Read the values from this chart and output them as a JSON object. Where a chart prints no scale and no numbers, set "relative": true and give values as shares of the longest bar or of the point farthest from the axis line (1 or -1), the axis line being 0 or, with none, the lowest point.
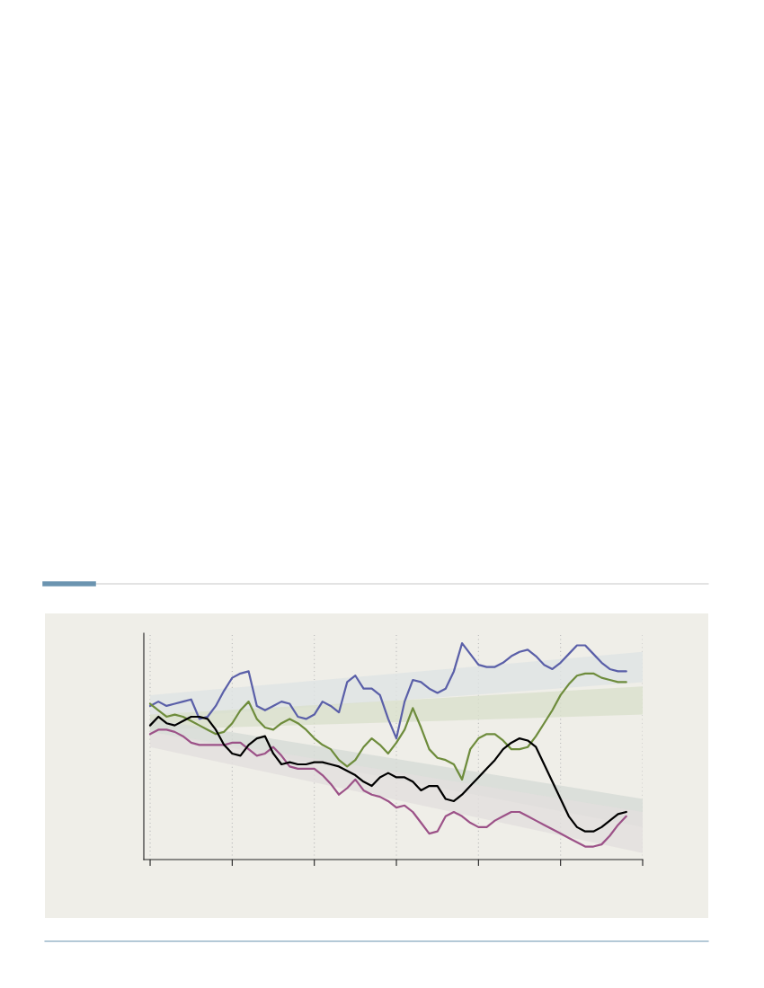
{
  "chart_data": {
    "type": "line",
    "relative": true,
    "grid": "x",
    "legend": false,
    "categories": [
      null,
      null,
      null,
      null,
      null,
      null,
      null,
      null,
      null,
      null,
      null,
      null,
      null,
      null,
      null,
      null,
      null,
      null,
      null,
      null,
      null,
      null,
      null,
      null,
      null,
      null,
      null,
      null,
      null,
      null,
      null,
      null,
      null,
      null,
      null,
      null,
      null,
      null,
      null,
      null,
      null,
      null,
      null,
      null,
      null,
      null,
      null,
      null,
      null,
      null,
      null,
      null,
      null,
      null,
      null,
      null,
      null,
      null,
      null,
      null,
      null
    ],
    "series": [
      {
        "type": "area",
        "color": "#dfe4e4",
        "values": [
          null,
          null,
          null,
          null,
          null,
          null,
          null,
          null,
          null,
          null,
          null,
          null,
          null,
          null,
          null,
          null,
          null,
          null,
          null,
          null,
          null,
          null,
          null,
          null,
          null,
          null,
          null,
          null,
          null,
          null,
          null,
          null,
          null,
          null,
          null,
          null,
          null,
          null,
          null,
          null,
          null,
          null,
          null,
          null,
          null,
          null,
          null,
          null,
          null,
          null,
          null,
          null,
          null,
          null,
          null,
          null,
          null,
          null,
          null,
          null,
          null
        ],
        "lower": [
          0.65,
          null,
          null,
          null,
          null,
          null,
          null,
          null,
          null,
          null,
          null,
          null,
          null,
          null,
          null,
          null,
          null,
          null,
          null,
          null,
          null,
          null,
          null,
          null,
          null,
          null,
          null,
          null,
          null,
          null,
          null,
          null,
          null,
          null,
          null,
          null,
          null,
          null,
          null,
          null,
          null,
          null,
          null,
          null,
          null,
          null,
          null,
          null,
          null,
          null,
          null,
          null,
          null,
          null,
          null,
          null,
          null,
          null,
          null,
          null,
          0.82
        ],
        "upper": [
          0.76,
          null,
          null,
          null,
          null,
          null,
          null,
          null,
          null,
          null,
          null,
          null,
          null,
          null,
          null,
          null,
          null,
          null,
          null,
          null,
          null,
          null,
          null,
          null,
          null,
          null,
          null,
          null,
          null,
          null,
          null,
          null,
          null,
          null,
          null,
          null,
          null,
          null,
          null,
          null,
          null,
          null,
          null,
          null,
          null,
          null,
          null,
          null,
          null,
          null,
          null,
          null,
          null,
          null,
          null,
          null,
          null,
          null,
          null,
          null,
          0.96
        ]
      },
      {
        "type": "area",
        "color": "#d9e0cc",
        "values": [
          null,
          null,
          null,
          null,
          null,
          null,
          null,
          null,
          null,
          null,
          null,
          null,
          null,
          null,
          null,
          null,
          null,
          null,
          null,
          null,
          null,
          null,
          null,
          null,
          null,
          null,
          null,
          null,
          null,
          null,
          null,
          null,
          null,
          null,
          null,
          null,
          null,
          null,
          null,
          null,
          null,
          null,
          null,
          null,
          null,
          null,
          null,
          null,
          null,
          null,
          null,
          null,
          null,
          null,
          null,
          null,
          null,
          null,
          null,
          null,
          null
        ],
        "lower": [
          0.6,
          null,
          null,
          null,
          null,
          null,
          null,
          null,
          null,
          null,
          null,
          null,
          null,
          null,
          null,
          null,
          null,
          null,
          null,
          null,
          null,
          null,
          null,
          null,
          null,
          null,
          null,
          null,
          null,
          null,
          null,
          null,
          null,
          null,
          null,
          null,
          null,
          null,
          null,
          null,
          null,
          null,
          null,
          null,
          null,
          null,
          null,
          null,
          null,
          null,
          null,
          null,
          null,
          null,
          null,
          null,
          null,
          null,
          null,
          null,
          0.67
        ],
        "upper": [
          0.67,
          null,
          null,
          null,
          null,
          null,
          null,
          null,
          null,
          null,
          null,
          null,
          null,
          null,
          null,
          null,
          null,
          null,
          null,
          null,
          null,
          null,
          null,
          null,
          null,
          null,
          null,
          null,
          null,
          null,
          null,
          null,
          null,
          null,
          null,
          null,
          null,
          null,
          null,
          null,
          null,
          null,
          null,
          null,
          null,
          null,
          null,
          null,
          null,
          null,
          null,
          null,
          null,
          null,
          null,
          null,
          null,
          null,
          null,
          null,
          0.8
        ]
      },
      {
        "type": "area",
        "color": "#d6dbd6",
        "values": [
          null,
          null,
          null,
          null,
          null,
          null,
          null,
          null,
          null,
          null,
          null,
          null,
          null,
          null,
          null,
          null,
          null,
          null,
          null,
          null,
          null,
          null,
          null,
          null,
          null,
          null,
          null,
          null,
          null,
          null,
          null,
          null,
          null,
          null,
          null,
          null,
          null,
          null,
          null,
          null,
          null,
          null,
          null,
          null,
          null,
          null,
          null,
          null,
          null,
          null,
          null,
          null,
          null,
          null,
          null,
          null,
          null,
          null,
          null,
          null,
          null
        ],
        "lower": [
          0.59,
          null,
          null,
          null,
          null,
          null,
          null,
          null,
          null,
          null,
          null,
          null,
          null,
          null,
          null,
          null,
          null,
          null,
          null,
          null,
          null,
          null,
          null,
          null,
          null,
          null,
          null,
          null,
          null,
          null,
          null,
          null,
          null,
          null,
          null,
          null,
          null,
          null,
          null,
          null,
          null,
          null,
          null,
          null,
          null,
          null,
          null,
          null,
          null,
          null,
          null,
          null,
          null,
          null,
          null,
          null,
          null,
          null,
          null,
          null,
          0.15
        ],
        "upper": [
          0.65,
          null,
          null,
          null,
          null,
          null,
          null,
          null,
          null,
          null,
          null,
          null,
          null,
          null,
          null,
          null,
          null,
          null,
          null,
          null,
          null,
          null,
          null,
          null,
          null,
          null,
          null,
          null,
          null,
          null,
          null,
          null,
          null,
          null,
          null,
          null,
          null,
          null,
          null,
          null,
          null,
          null,
          null,
          null,
          null,
          null,
          null,
          null,
          null,
          null,
          null,
          null,
          null,
          null,
          null,
          null,
          null,
          null,
          null,
          null,
          0.28
        ]
      },
      {
        "type": "area",
        "color": "#e2dfdd",
        "values": [
          null,
          null,
          null,
          null,
          null,
          null,
          null,
          null,
          null,
          null,
          null,
          null,
          null,
          null,
          null,
          null,
          null,
          null,
          null,
          null,
          null,
          null,
          null,
          null,
          null,
          null,
          null,
          null,
          null,
          null,
          null,
          null,
          null,
          null,
          null,
          null,
          null,
          null,
          null,
          null,
          null,
          null,
          null,
          null,
          null,
          null,
          null,
          null,
          null,
          null,
          null,
          null,
          null,
          null,
          null,
          null,
          null,
          null,
          null,
          null,
          null
        ],
        "lower": [
          0.52,
          null,
          null,
          null,
          null,
          null,
          null,
          null,
          null,
          null,
          null,
          null,
          null,
          null,
          null,
          null,
          null,
          null,
          null,
          null,
          null,
          null,
          null,
          null,
          null,
          null,
          null,
          null,
          null,
          null,
          null,
          null,
          null,
          null,
          null,
          null,
          null,
          null,
          null,
          null,
          null,
          null,
          null,
          null,
          null,
          null,
          null,
          null,
          null,
          null,
          null,
          null,
          null,
          null,
          null,
          null,
          null,
          null,
          null,
          null,
          0.03
        ],
        "upper": [
          0.59,
          null,
          null,
          null,
          null,
          null,
          null,
          null,
          null,
          null,
          null,
          null,
          null,
          null,
          null,
          null,
          null,
          null,
          null,
          null,
          null,
          null,
          null,
          null,
          null,
          null,
          null,
          null,
          null,
          null,
          null,
          null,
          null,
          null,
          null,
          null,
          null,
          null,
          null,
          null,
          null,
          null,
          null,
          null,
          null,
          null,
          null,
          null,
          null,
          null,
          null,
          null,
          null,
          null,
          null,
          null,
          null,
          null,
          null,
          null,
          0.22
        ]
      },
      {
        "color": "#5a5fa8",
        "values": [
          0.71,
          0.73,
          0.71,
          0.72,
          0.73,
          0.74,
          0.65,
          0.66,
          0.71,
          0.78,
          0.84,
          0.86,
          0.87,
          0.71,
          0.69,
          0.71,
          0.73,
          0.72,
          0.66,
          0.65,
          0.67,
          0.73,
          0.71,
          0.68,
          0.82,
          0.85,
          0.79,
          0.79,
          0.76,
          0.65,
          0.56,
          0.73,
          0.83,
          0.82,
          0.79,
          0.77,
          0.79,
          0.87,
          1.0,
          0.95,
          0.9,
          0.89,
          0.89,
          0.91,
          0.94,
          0.96,
          0.97,
          0.94,
          0.9,
          0.88,
          0.91,
          0.95,
          0.99,
          0.99,
          0.95,
          0.91,
          0.88,
          0.87,
          0.87,
          null,
          null
        ]
      },
      {
        "color": "#6e8c3c",
        "values": [
          0.72,
          0.69,
          0.66,
          0.67,
          0.66,
          0.64,
          0.62,
          0.6,
          0.58,
          0.59,
          0.63,
          0.69,
          0.73,
          0.65,
          0.61,
          0.6,
          0.63,
          0.65,
          0.63,
          0.6,
          0.56,
          0.53,
          0.51,
          0.46,
          0.43,
          0.46,
          0.52,
          0.56,
          0.53,
          0.49,
          0.54,
          0.6,
          0.7,
          0.61,
          0.51,
          0.47,
          0.46,
          0.44,
          0.37,
          0.51,
          0.56,
          0.58,
          0.58,
          0.55,
          0.51,
          0.51,
          0.52,
          0.57,
          0.63,
          0.69,
          0.76,
          0.81,
          0.85,
          0.86,
          0.86,
          0.84,
          0.83,
          0.82,
          0.82,
          null,
          null
        ]
      },
      {
        "color": "#9c5288",
        "values": [
          0.58,
          0.6,
          0.6,
          0.59,
          0.57,
          0.54,
          0.53,
          0.53,
          0.53,
          0.53,
          0.54,
          0.54,
          0.51,
          0.48,
          0.49,
          0.52,
          0.48,
          0.43,
          0.42,
          0.42,
          0.42,
          0.39,
          0.35,
          0.3,
          0.33,
          0.37,
          0.32,
          0.3,
          0.29,
          0.27,
          0.24,
          0.25,
          0.22,
          0.17,
          0.12,
          0.13,
          0.2,
          0.22,
          0.2,
          0.17,
          0.15,
          0.15,
          0.18,
          0.2,
          0.22,
          0.22,
          0.2,
          0.18,
          0.16,
          0.14,
          0.12,
          0.1,
          0.08,
          0.06,
          0.06,
          0.07,
          0.11,
          0.16,
          0.2,
          null,
          null
        ]
      },
      {
        "color": "#000000",
        "values": [
          0.62,
          0.66,
          0.63,
          0.62,
          0.64,
          0.66,
          0.66,
          0.65,
          0.6,
          0.53,
          0.49,
          0.48,
          0.53,
          0.56,
          0.57,
          0.49,
          0.44,
          0.45,
          0.44,
          0.44,
          0.45,
          0.45,
          0.44,
          0.43,
          0.41,
          0.39,
          0.36,
          0.34,
          0.38,
          0.4,
          0.38,
          0.38,
          0.36,
          0.32,
          0.34,
          0.34,
          0.28,
          0.27,
          0.3,
          0.34,
          0.38,
          0.42,
          0.46,
          0.51,
          0.54,
          0.56,
          0.55,
          0.52,
          0.44,
          0.36,
          0.28,
          0.2,
          0.15,
          0.13,
          0.13,
          0.15,
          0.18,
          0.21,
          0.22,
          null,
          null
        ]
      }
    ]
  }
}
